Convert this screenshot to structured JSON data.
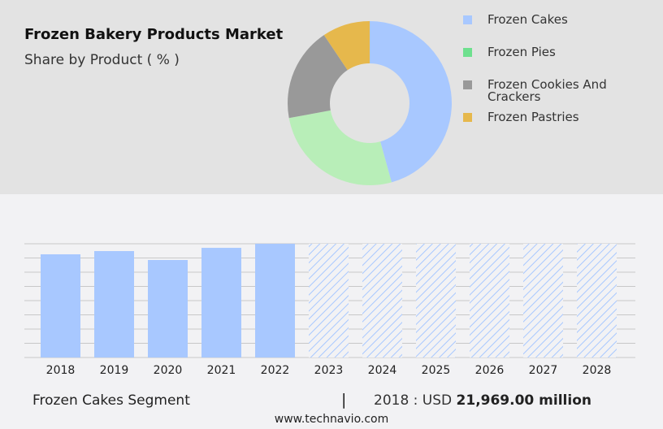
{
  "header": {
    "title": "Frozen Bakery Products Market",
    "subtitle": "Share by Product ( % )"
  },
  "chart_data": [
    {
      "type": "pie",
      "style": "donut",
      "title": "Frozen Bakery Products Market",
      "subtitle": "Share by Product ( % )",
      "legend_position": "right",
      "slices": [
        {
          "name": "Frozen Cakes",
          "value": 45.7,
          "color": "#a8c8ff"
        },
        {
          "name": "Frozen Pies",
          "value": 26.4,
          "color": "#b8eeb8",
          "legend_color": "#6ee08e"
        },
        {
          "name": "Frozen Cookies And Crackers",
          "value": 18.5,
          "color": "#999999"
        },
        {
          "name": "Frozen Pastries",
          "value": 9.4,
          "color": "#e6b84c"
        }
      ]
    },
    {
      "type": "bar",
      "series_name": "Frozen Cakes Segment",
      "color": "#a8c8ff",
      "grid": true,
      "categories": [
        "2018",
        "2019",
        "2020",
        "2021",
        "2022",
        "2023",
        "2024",
        "2025",
        "2026",
        "2027",
        "2028"
      ],
      "values": [
        21969,
        22660,
        20760,
        23350,
        24220,
        null,
        null,
        null,
        null,
        null,
        null
      ],
      "forecast": [
        false,
        false,
        false,
        false,
        false,
        true,
        true,
        true,
        true,
        true,
        true
      ],
      "ylim": [
        0,
        24220
      ]
    }
  ],
  "footer": {
    "segment": "Frozen Cakes Segment",
    "separator": "|",
    "year_label": "2018 : USD",
    "value": "21,969.00 million",
    "site": "www.technavio.com"
  }
}
